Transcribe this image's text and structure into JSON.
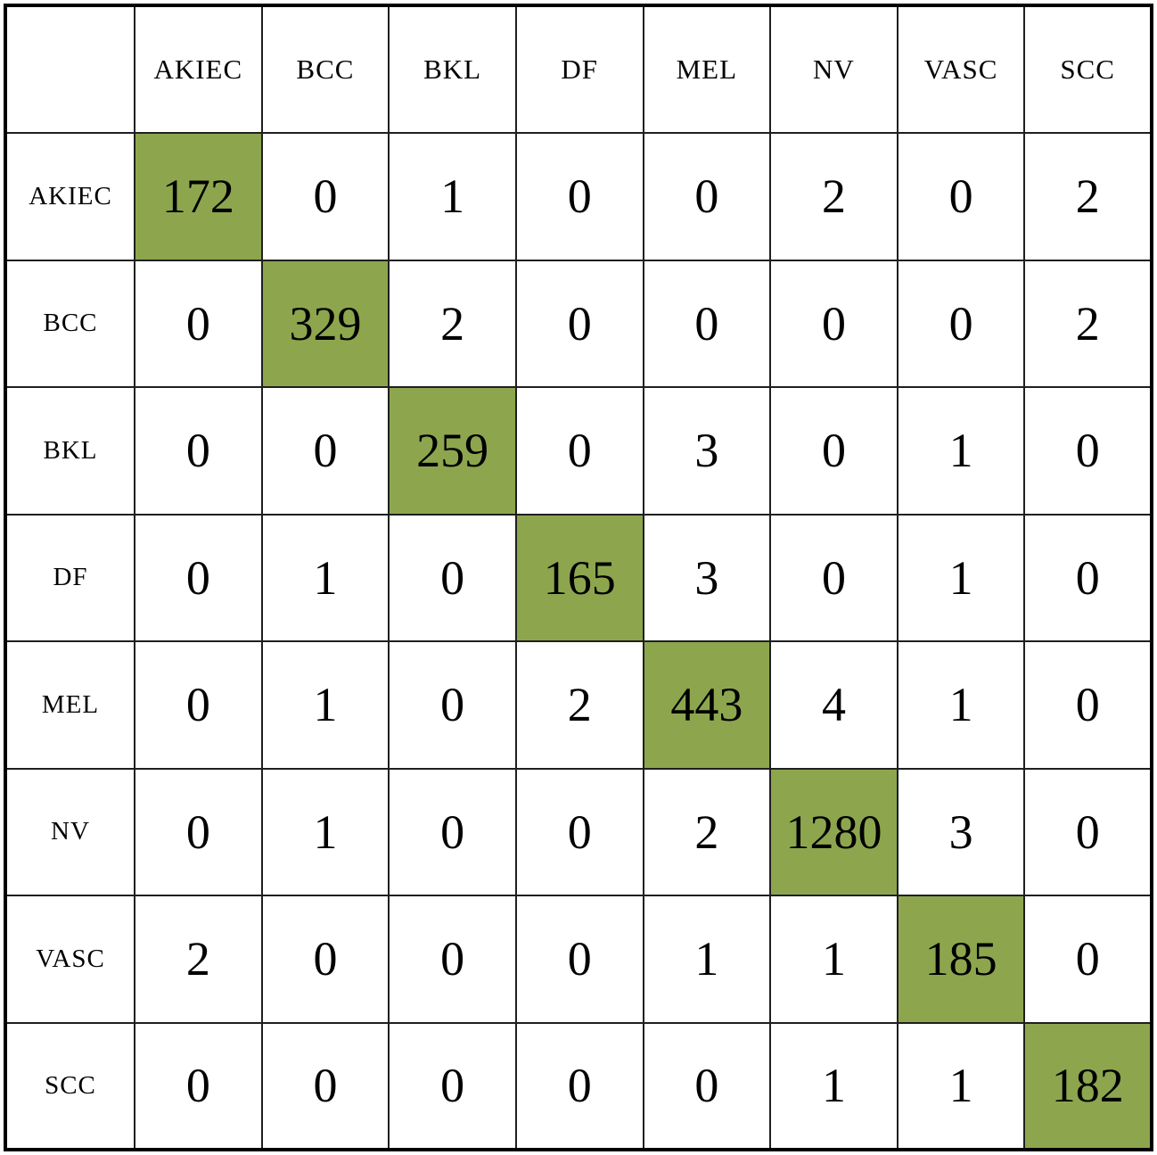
{
  "table": {
    "corner_label": "",
    "column_headers": [
      "AKIEC",
      "BCC",
      "BKL",
      "DF",
      "MEL",
      "NV",
      "VASC",
      "SCC"
    ],
    "row_headers": [
      "AKIEC",
      "BCC",
      "BKL",
      "DF",
      "MEL",
      "NV",
      "VASC",
      "SCC"
    ],
    "rows": [
      {
        "label": "AKIEC",
        "values": [
          172,
          0,
          1,
          0,
          0,
          2,
          0,
          2
        ]
      },
      {
        "label": "BCC",
        "values": [
          0,
          329,
          2,
          0,
          0,
          0,
          0,
          2
        ]
      },
      {
        "label": "BKL",
        "values": [
          0,
          0,
          259,
          0,
          3,
          0,
          1,
          0
        ]
      },
      {
        "label": "DF",
        "values": [
          0,
          1,
          0,
          165,
          3,
          0,
          1,
          0
        ]
      },
      {
        "label": "MEL",
        "values": [
          0,
          1,
          0,
          2,
          443,
          4,
          1,
          0
        ]
      },
      {
        "label": "NV",
        "values": [
          0,
          1,
          0,
          0,
          2,
          1280,
          3,
          0
        ]
      },
      {
        "label": "VASC",
        "values": [
          2,
          0,
          0,
          0,
          1,
          1,
          185,
          0
        ]
      },
      {
        "label": "SCC",
        "values": [
          0,
          0,
          0,
          0,
          0,
          1,
          1,
          182
        ]
      }
    ]
  },
  "colors": {
    "diagonal_highlight": "#8da64e",
    "grid_line": "#1f1f1f",
    "outer_border": "#000000",
    "background": "#ffffff",
    "text": "#000000"
  },
  "chart_data": {
    "type": "heatmap",
    "subtype": "confusion-matrix",
    "title": "",
    "x_labels": [
      "AKIEC",
      "BCC",
      "BKL",
      "DF",
      "MEL",
      "NV",
      "VASC",
      "SCC"
    ],
    "y_labels": [
      "AKIEC",
      "BCC",
      "BKL",
      "DF",
      "MEL",
      "NV",
      "VASC",
      "SCC"
    ],
    "matrix": [
      [
        172,
        0,
        1,
        0,
        0,
        2,
        0,
        2
      ],
      [
        0,
        329,
        2,
        0,
        0,
        0,
        0,
        2
      ],
      [
        0,
        0,
        259,
        0,
        3,
        0,
        1,
        0
      ],
      [
        0,
        1,
        0,
        165,
        3,
        0,
        1,
        0
      ],
      [
        0,
        1,
        0,
        2,
        443,
        4,
        1,
        0
      ],
      [
        0,
        1,
        0,
        0,
        2,
        1280,
        3,
        0
      ],
      [
        2,
        0,
        0,
        0,
        1,
        1,
        185,
        0
      ],
      [
        0,
        0,
        0,
        0,
        0,
        1,
        1,
        182
      ]
    ],
    "highlighted_cells": "diagonal",
    "legend": "none",
    "grid": true
  }
}
